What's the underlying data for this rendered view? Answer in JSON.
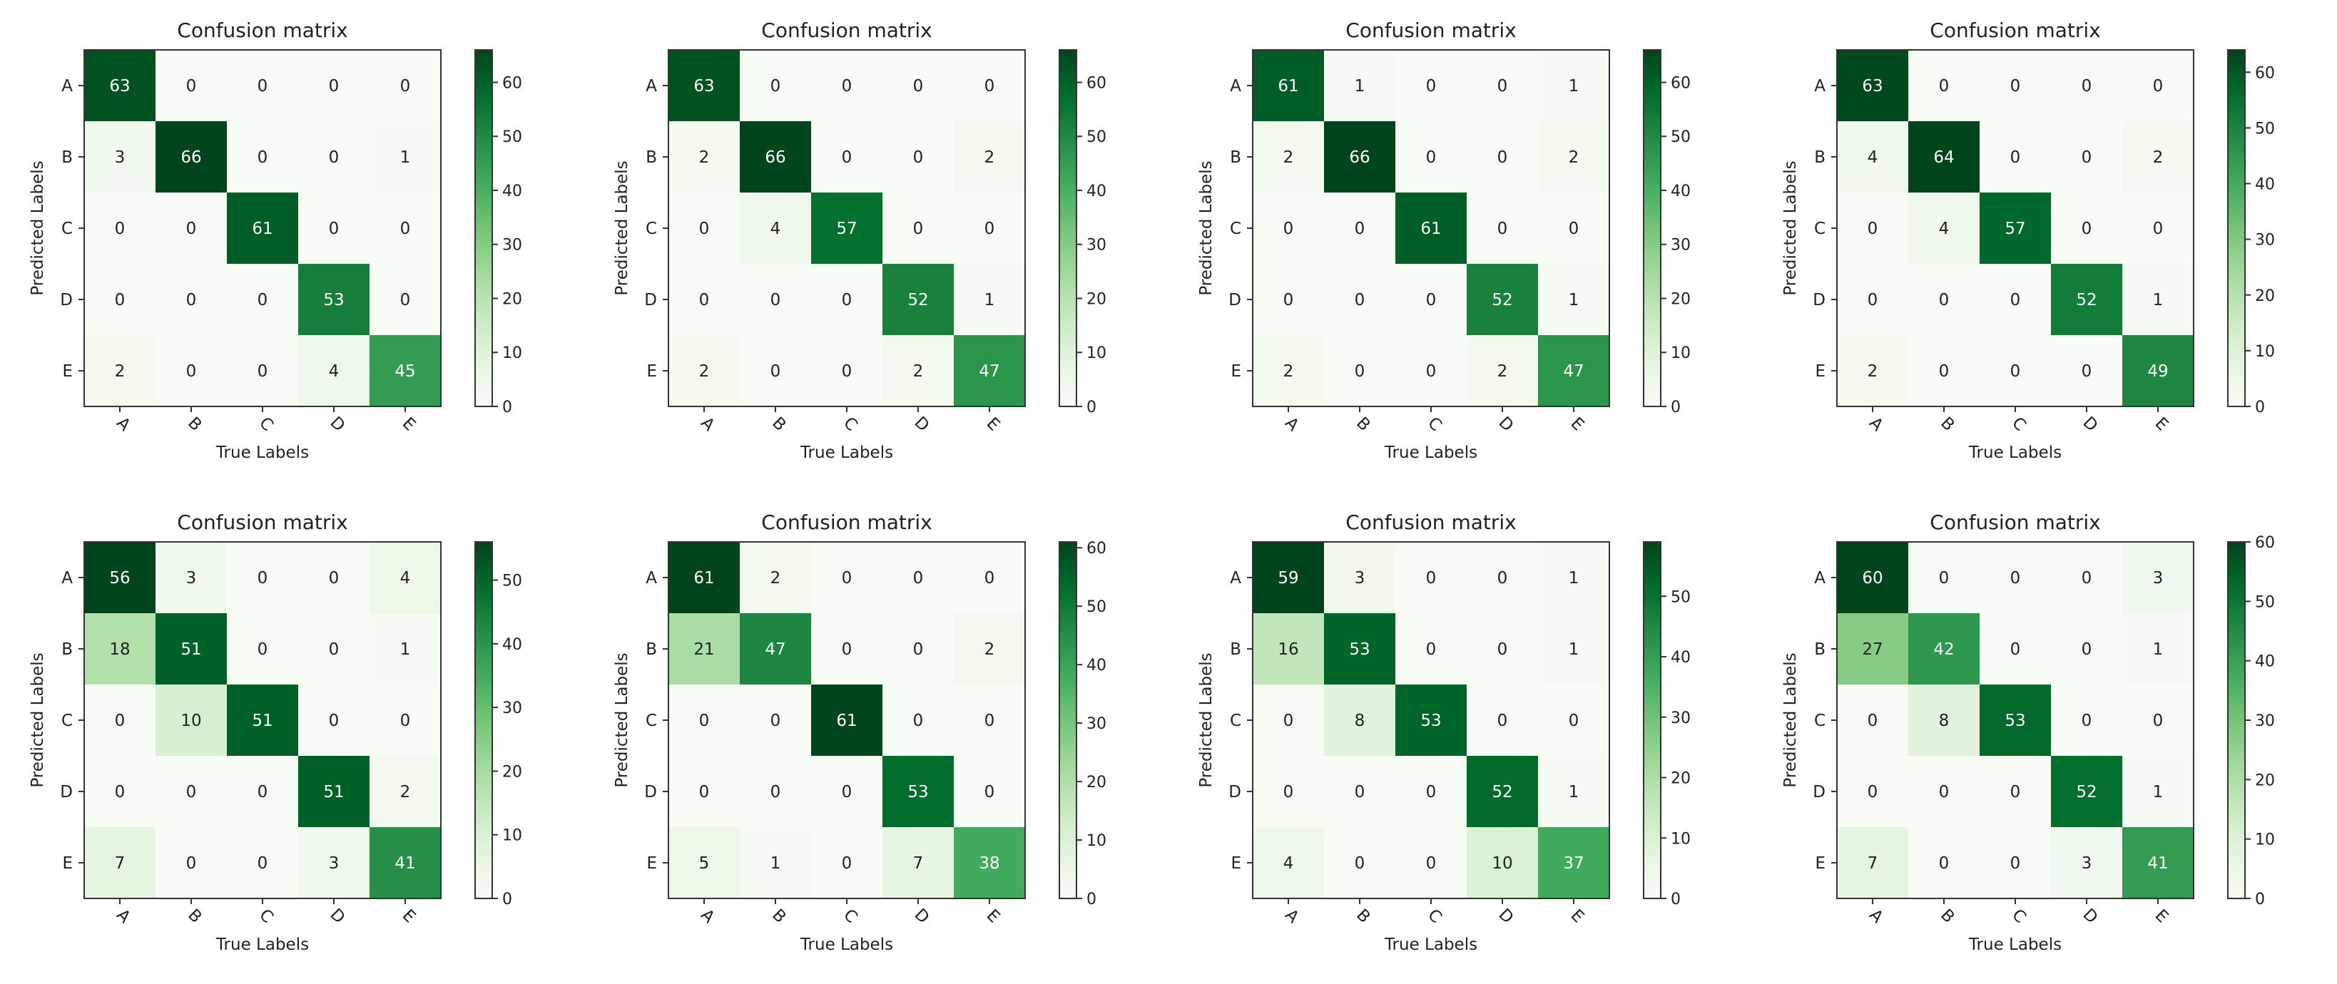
{
  "chart_data": [
    {
      "type": "heatmap",
      "title": "Confusion matrix",
      "xlabel": "True Labels",
      "ylabel": "Predicted Labels",
      "x_categories": [
        "A",
        "B",
        "C",
        "D",
        "E"
      ],
      "y_categories": [
        "A",
        "B",
        "C",
        "D",
        "E"
      ],
      "matrix": [
        [
          63,
          0,
          0,
          0,
          0
        ],
        [
          3,
          66,
          0,
          0,
          1
        ],
        [
          0,
          0,
          61,
          0,
          0
        ],
        [
          0,
          0,
          0,
          53,
          0
        ],
        [
          2,
          0,
          0,
          4,
          45
        ]
      ],
      "colorbar": {
        "min": 0,
        "max": 66,
        "ticks": [
          0,
          10,
          20,
          30,
          40,
          50,
          60
        ]
      },
      "colormap": "Greens"
    },
    {
      "type": "heatmap",
      "title": "Confusion matrix",
      "xlabel": "True Labels",
      "ylabel": "Predicted Labels",
      "x_categories": [
        "A",
        "B",
        "C",
        "D",
        "E"
      ],
      "y_categories": [
        "A",
        "B",
        "C",
        "D",
        "E"
      ],
      "matrix": [
        [
          63,
          0,
          0,
          0,
          0
        ],
        [
          2,
          66,
          0,
          0,
          2
        ],
        [
          0,
          4,
          57,
          0,
          0
        ],
        [
          0,
          0,
          0,
          52,
          1
        ],
        [
          2,
          0,
          0,
          2,
          47
        ]
      ],
      "colorbar": {
        "min": 0,
        "max": 66,
        "ticks": [
          0,
          10,
          20,
          30,
          40,
          50,
          60
        ]
      },
      "colormap": "Greens"
    },
    {
      "type": "heatmap",
      "title": "Confusion matrix",
      "xlabel": "True Labels",
      "ylabel": "Predicted Labels",
      "x_categories": [
        "A",
        "B",
        "C",
        "D",
        "E"
      ],
      "y_categories": [
        "A",
        "B",
        "C",
        "D",
        "E"
      ],
      "matrix": [
        [
          61,
          1,
          0,
          0,
          1
        ],
        [
          2,
          66,
          0,
          0,
          2
        ],
        [
          0,
          0,
          61,
          0,
          0
        ],
        [
          0,
          0,
          0,
          52,
          1
        ],
        [
          2,
          0,
          0,
          2,
          47
        ]
      ],
      "colorbar": {
        "min": 0,
        "max": 66,
        "ticks": [
          0,
          10,
          20,
          30,
          40,
          50,
          60
        ]
      },
      "colormap": "Greens"
    },
    {
      "type": "heatmap",
      "title": "Confusion matrix",
      "xlabel": "True Labels",
      "ylabel": "Predicted Labels",
      "x_categories": [
        "A",
        "B",
        "C",
        "D",
        "E"
      ],
      "y_categories": [
        "A",
        "B",
        "C",
        "D",
        "E"
      ],
      "matrix": [
        [
          63,
          0,
          0,
          0,
          0
        ],
        [
          4,
          64,
          0,
          0,
          2
        ],
        [
          0,
          4,
          57,
          0,
          0
        ],
        [
          0,
          0,
          0,
          52,
          1
        ],
        [
          2,
          0,
          0,
          0,
          49
        ]
      ],
      "colorbar": {
        "min": 0,
        "max": 64,
        "ticks": [
          0,
          10,
          20,
          30,
          40,
          50,
          60
        ]
      },
      "colormap": "Greens"
    },
    {
      "type": "heatmap",
      "title": "Confusion matrix",
      "xlabel": "True Labels",
      "ylabel": "Predicted Labels",
      "x_categories": [
        "A",
        "B",
        "C",
        "D",
        "E"
      ],
      "y_categories": [
        "A",
        "B",
        "C",
        "D",
        "E"
      ],
      "matrix": [
        [
          56,
          3,
          0,
          0,
          4
        ],
        [
          18,
          51,
          0,
          0,
          1
        ],
        [
          0,
          10,
          51,
          0,
          0
        ],
        [
          0,
          0,
          0,
          51,
          2
        ],
        [
          7,
          0,
          0,
          3,
          41
        ]
      ],
      "colorbar": {
        "min": 0,
        "max": 56,
        "ticks": [
          0,
          10,
          20,
          30,
          40,
          50
        ]
      },
      "colormap": "Greens"
    },
    {
      "type": "heatmap",
      "title": "Confusion matrix",
      "xlabel": "True Labels",
      "ylabel": "Predicted Labels",
      "x_categories": [
        "A",
        "B",
        "C",
        "D",
        "E"
      ],
      "y_categories": [
        "A",
        "B",
        "C",
        "D",
        "E"
      ],
      "matrix": [
        [
          61,
          2,
          0,
          0,
          0
        ],
        [
          21,
          47,
          0,
          0,
          2
        ],
        [
          0,
          0,
          61,
          0,
          0
        ],
        [
          0,
          0,
          0,
          53,
          0
        ],
        [
          5,
          1,
          0,
          7,
          38
        ]
      ],
      "colorbar": {
        "min": 0,
        "max": 61,
        "ticks": [
          0,
          10,
          20,
          30,
          40,
          50,
          60
        ]
      },
      "colormap": "Greens"
    },
    {
      "type": "heatmap",
      "title": "Confusion matrix",
      "xlabel": "True Labels",
      "ylabel": "Predicted Labels",
      "x_categories": [
        "A",
        "B",
        "C",
        "D",
        "E"
      ],
      "y_categories": [
        "A",
        "B",
        "C",
        "D",
        "E"
      ],
      "matrix": [
        [
          59,
          3,
          0,
          0,
          1
        ],
        [
          16,
          53,
          0,
          0,
          1
        ],
        [
          0,
          8,
          53,
          0,
          0
        ],
        [
          0,
          0,
          0,
          52,
          1
        ],
        [
          4,
          0,
          0,
          10,
          37
        ]
      ],
      "colorbar": {
        "min": 0,
        "max": 59,
        "ticks": [
          0,
          10,
          20,
          30,
          40,
          50
        ]
      },
      "colormap": "Greens"
    },
    {
      "type": "heatmap",
      "title": "Confusion matrix",
      "xlabel": "True Labels",
      "ylabel": "Predicted Labels",
      "x_categories": [
        "A",
        "B",
        "C",
        "D",
        "E"
      ],
      "y_categories": [
        "A",
        "B",
        "C",
        "D",
        "E"
      ],
      "matrix": [
        [
          60,
          0,
          0,
          0,
          3
        ],
        [
          27,
          42,
          0,
          0,
          1
        ],
        [
          0,
          8,
          53,
          0,
          0
        ],
        [
          0,
          0,
          0,
          52,
          1
        ],
        [
          7,
          0,
          0,
          3,
          41
        ]
      ],
      "colorbar": {
        "min": 0,
        "max": 60,
        "ticks": [
          0,
          10,
          20,
          30,
          40,
          50,
          60
        ]
      },
      "colormap": "Greens"
    }
  ]
}
